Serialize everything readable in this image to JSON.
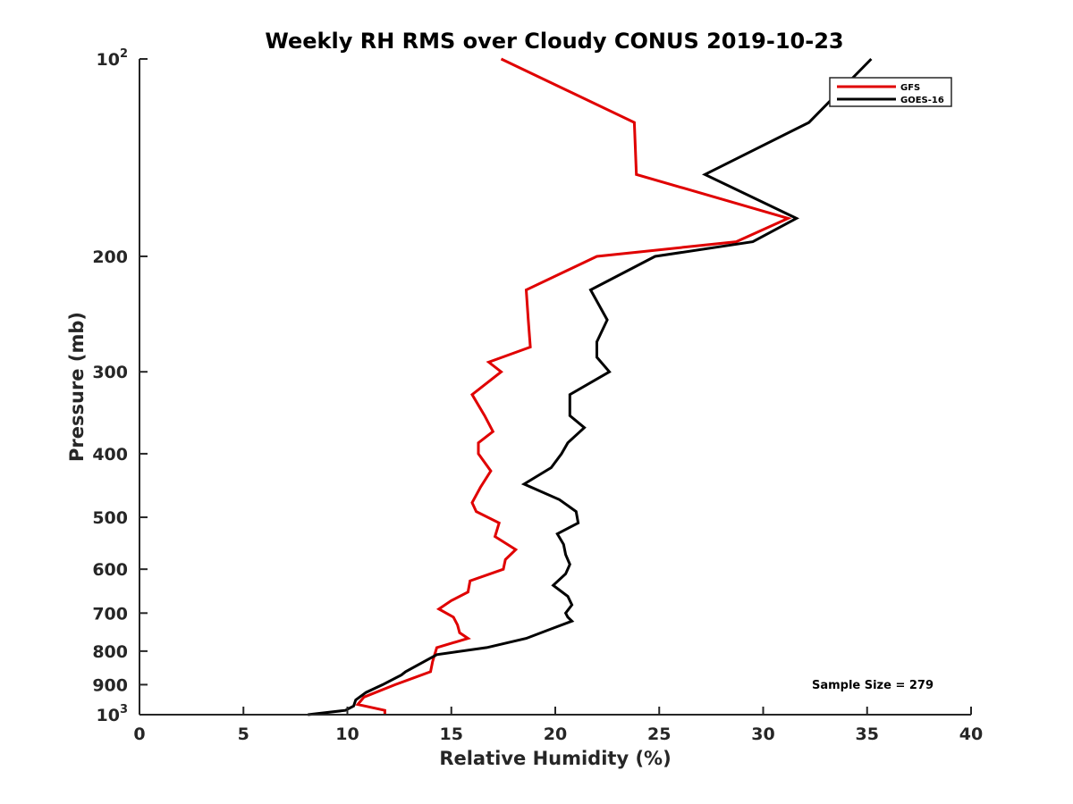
{
  "chart_data": {
    "type": "line",
    "title": "Weekly RH RMS over Cloudy CONUS 2019-10-23",
    "xlabel": "Relative Humidity (%)",
    "ylabel": "Pressure (mb)",
    "xlim": [
      0,
      40
    ],
    "ylim": [
      100,
      1000
    ],
    "yscale": "log",
    "y_reversed": true,
    "x_ticks": [
      "0",
      "5",
      "10",
      "15",
      "20",
      "25",
      "30",
      "35",
      "40"
    ],
    "x_tick_values": [
      0,
      5,
      10,
      15,
      20,
      25,
      30,
      35,
      40
    ],
    "y_ticks": [
      {
        "value": 100,
        "base": "10",
        "exp": "2"
      },
      {
        "value": 200,
        "label": "200"
      },
      {
        "value": 300,
        "label": "300"
      },
      {
        "value": 400,
        "label": "400"
      },
      {
        "value": 500,
        "label": "500"
      },
      {
        "value": 600,
        "label": "600"
      },
      {
        "value": 700,
        "label": "700"
      },
      {
        "value": 800,
        "label": "800"
      },
      {
        "value": 900,
        "label": "900"
      },
      {
        "value": 1000,
        "base": "10",
        "exp": "3"
      }
    ],
    "grid": false,
    "legend_position": "top-right",
    "annotation": "Sample Size = 279",
    "series": [
      {
        "name": "GFS",
        "color": "#e00000",
        "points": [
          [
            17.4,
            100
          ],
          [
            23.8,
            125
          ],
          [
            23.9,
            150
          ],
          [
            31.2,
            175
          ],
          [
            28.7,
            190
          ],
          [
            22.0,
            200
          ],
          [
            18.6,
            225
          ],
          [
            18.7,
            250
          ],
          [
            18.8,
            275
          ],
          [
            16.8,
            290
          ],
          [
            17.4,
            300
          ],
          [
            16.0,
            325
          ],
          [
            16.6,
            350
          ],
          [
            17.0,
            370
          ],
          [
            16.3,
            385
          ],
          [
            16.3,
            400
          ],
          [
            16.9,
            425
          ],
          [
            16.4,
            450
          ],
          [
            16.0,
            475
          ],
          [
            16.2,
            490
          ],
          [
            17.3,
            510
          ],
          [
            17.1,
            535
          ],
          [
            18.1,
            560
          ],
          [
            17.6,
            580
          ],
          [
            17.5,
            600
          ],
          [
            15.9,
            625
          ],
          [
            15.8,
            650
          ],
          [
            15.0,
            670
          ],
          [
            14.4,
            690
          ],
          [
            15.1,
            710
          ],
          [
            15.3,
            730
          ],
          [
            15.4,
            750
          ],
          [
            15.8,
            765
          ],
          [
            14.3,
            790
          ],
          [
            14.2,
            810
          ],
          [
            14.1,
            830
          ],
          [
            14.0,
            860
          ],
          [
            12.3,
            900
          ],
          [
            10.8,
            940
          ],
          [
            10.5,
            965
          ],
          [
            11.8,
            985
          ],
          [
            11.8,
            1000
          ]
        ]
      },
      {
        "name": "GOES-16",
        "color": "#000000",
        "points": [
          [
            35.2,
            100
          ],
          [
            32.2,
            125
          ],
          [
            27.2,
            150
          ],
          [
            31.6,
            175
          ],
          [
            29.5,
            190
          ],
          [
            24.8,
            200
          ],
          [
            21.7,
            225
          ],
          [
            22.5,
            250
          ],
          [
            22.0,
            270
          ],
          [
            22.0,
            285
          ],
          [
            22.6,
            300
          ],
          [
            20.7,
            325
          ],
          [
            20.7,
            350
          ],
          [
            21.4,
            365
          ],
          [
            20.6,
            385
          ],
          [
            20.3,
            400
          ],
          [
            19.8,
            420
          ],
          [
            18.5,
            445
          ],
          [
            20.2,
            470
          ],
          [
            21.0,
            490
          ],
          [
            21.1,
            510
          ],
          [
            20.1,
            530
          ],
          [
            20.4,
            550
          ],
          [
            20.5,
            570
          ],
          [
            20.7,
            590
          ],
          [
            20.5,
            610
          ],
          [
            19.9,
            635
          ],
          [
            20.6,
            660
          ],
          [
            20.8,
            680
          ],
          [
            20.5,
            700
          ],
          [
            20.6,
            710
          ],
          [
            20.8,
            720
          ],
          [
            19.8,
            740
          ],
          [
            18.6,
            765
          ],
          [
            16.7,
            790
          ],
          [
            14.3,
            810
          ],
          [
            12.8,
            860
          ],
          [
            12.6,
            870
          ],
          [
            11.7,
            900
          ],
          [
            10.9,
            925
          ],
          [
            10.4,
            950
          ],
          [
            10.3,
            970
          ],
          [
            9.9,
            985
          ],
          [
            8.1,
            1000
          ]
        ]
      }
    ]
  }
}
